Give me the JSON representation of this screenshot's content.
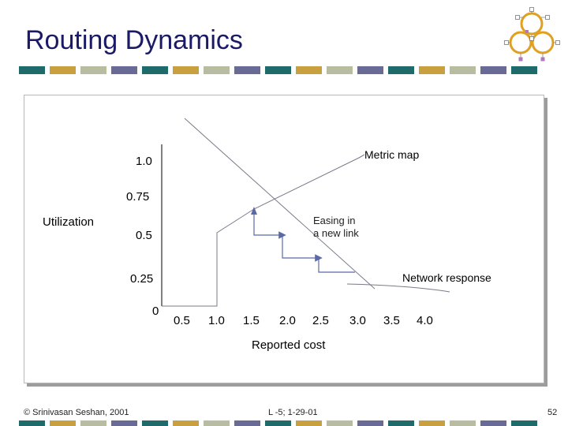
{
  "slide": {
    "title": "Routing Dynamics",
    "footer_left": "© Srinivasan Seshan, 2001",
    "footer_center": "L -5; 1-29-01",
    "page_number": "52",
    "band_colors": [
      "#1f6b6b",
      "#c8a040",
      "#b8bca0",
      "#6a6a96",
      "#1f6b6b",
      "#c8a040",
      "#b8bca0",
      "#6a6a96",
      "#1f6b6b",
      "#c8a040",
      "#b8bca0",
      "#6a6a96",
      "#1f6b6b",
      "#c8a040",
      "#b8bca0",
      "#6a6a96",
      "#1f6b6b"
    ]
  },
  "diagram": {
    "y_axis_label": "Utilization",
    "x_axis_label": "Reported cost",
    "y_ticks": [
      "1.0",
      "0.75",
      "0.5",
      "0.25",
      "0"
    ],
    "x_ticks": [
      "0.5",
      "1.0",
      "1.5",
      "2.0",
      "2.5",
      "3.0",
      "3.5",
      "4.0"
    ],
    "annotations": {
      "metric_map": "Metric map",
      "easing_line1": "Easing in",
      "easing_line2": "a new link",
      "network_response": "Network response"
    }
  }
}
